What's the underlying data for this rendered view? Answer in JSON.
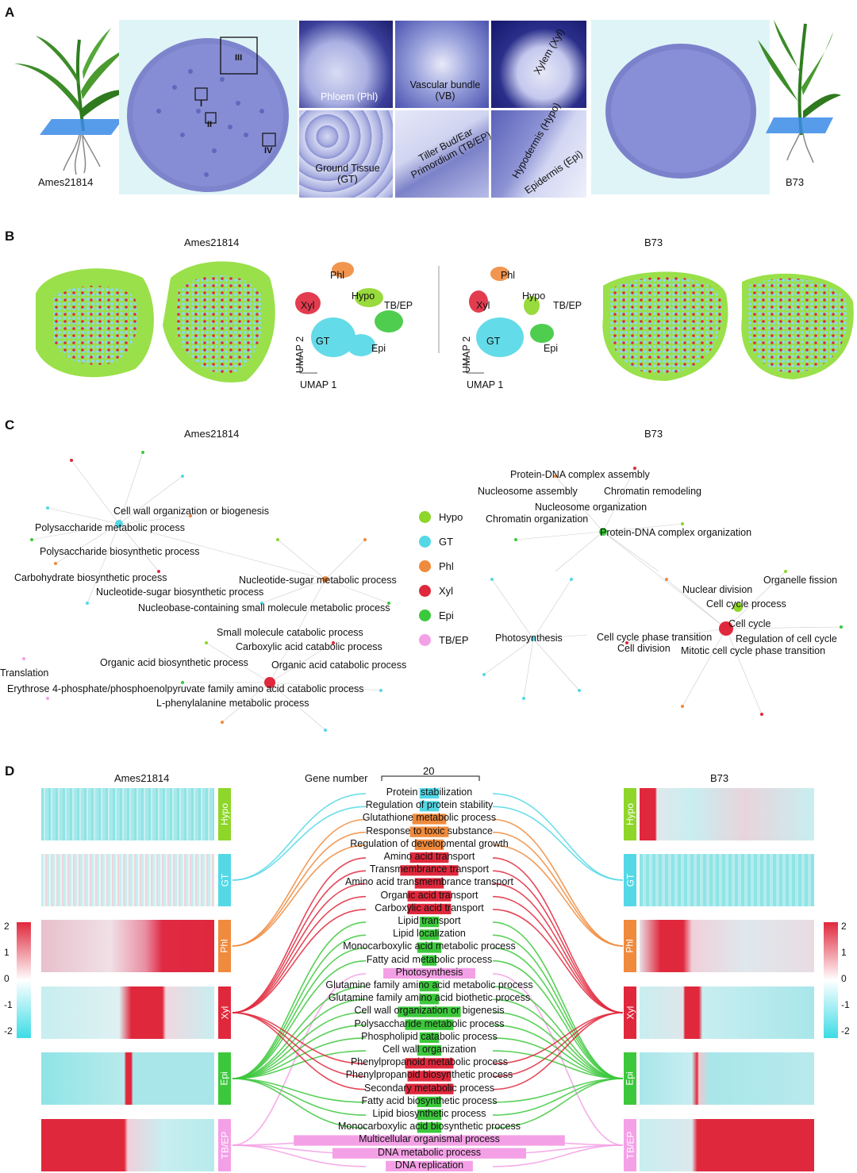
{
  "panels": {
    "A": {
      "letter": "A",
      "left_label": "Ames21814",
      "right_label": "B73",
      "roman": [
        "I",
        "II",
        "III",
        "IV"
      ],
      "micro_labels": {
        "phloem": "Phloem (Phl)",
        "vb": "Vascular bundle (VB)",
        "xylem": "Xylem (Xyl)",
        "gt": "Ground Tissue (GT)",
        "tb": "Tiller Bud/Ear Primordium (TB/EP)",
        "hypo": "Hypodermis (Hypo)",
        "epi": "Epidermis (Epi)"
      }
    },
    "B": {
      "letter": "B",
      "left_title": "Ames21814",
      "right_title": "B73",
      "umap_x": "UMAP 1",
      "umap_y": "UMAP 2",
      "clusters": [
        "Phl",
        "Xyl",
        "Hypo",
        "TB/EP",
        "GT",
        "Epi"
      ]
    },
    "C": {
      "letter": "C",
      "left_title": "Ames21814",
      "right_title": "B73",
      "legend": [
        {
          "name": "Hypo",
          "color": "#8ed629"
        },
        {
          "name": "GT",
          "color": "#54d8e6"
        },
        {
          "name": "Phl",
          "color": "#f08a3c"
        },
        {
          "name": "Xyl",
          "color": "#e0283c"
        },
        {
          "name": "Epi",
          "color": "#3cc83c"
        },
        {
          "name": "TB/EP",
          "color": "#f4a0e6"
        }
      ],
      "left_terms": [
        "Cell wall organization or biogenesis",
        "Polysaccharide metabolic process",
        "Polysaccharide biosynthetic process",
        "Carbohydrate biosynthetic process",
        "Nucleotide-sugar biosynthetic process",
        "Nucleotide-sugar metabolic process",
        "Nucleobase-containing small molecule metabolic process",
        "Small molecule catabolic process",
        "Carboxylic acid catabolic process",
        "Organic acid biosynthetic process",
        "Organic acid catabolic process",
        "Translation",
        "Erythrose 4-phosphate/phosphoenolpyruvate family amino acid catabolic process",
        "L-phenylalanine metabolic process"
      ],
      "right_terms": [
        "Protein-DNA complex assembly",
        "Nucleosome assembly",
        "Chromatin remodeling",
        "Nucleosome organization",
        "Chromatin organization",
        "Protein-DNA complex organization",
        "Photosynthesis",
        "Organelle fission",
        "Nuclear division",
        "Cell cycle process",
        "Cell cycle",
        "Cell cycle phase transition",
        "Regulation of cell cycle",
        "Cell division",
        "Mitotic cell cycle phase transition"
      ]
    },
    "D": {
      "letter": "D",
      "left_title": "Ames21814",
      "right_title": "B73",
      "gene_number_label": "Gene number",
      "scale_value": "20",
      "colorbar_ticks": [
        "2",
        "1",
        "0",
        "-1",
        "-2"
      ],
      "tissues": [
        "Hypo",
        "GT",
        "Phl",
        "Xyl",
        "Epi",
        "TB/EP"
      ],
      "terms": [
        {
          "name": "Protein stabilization",
          "color": "#54d8e6",
          "count": 4
        },
        {
          "name": "Regulation of protein stability",
          "color": "#54d8e6",
          "count": 4
        },
        {
          "name": "Glutathione metabolic process",
          "color": "#f08a3c",
          "count": 7
        },
        {
          "name": "Response to toxic substance",
          "color": "#f08a3c",
          "count": 8
        },
        {
          "name": "Regulation of developmental growth",
          "color": "#f08a3c",
          "count": 6
        },
        {
          "name": "Amino acid transport",
          "color": "#e0283c",
          "count": 8
        },
        {
          "name": "Transmembrance transport",
          "color": "#e0283c",
          "count": 12
        },
        {
          "name": "Amino acid transmembrance transport",
          "color": "#e0283c",
          "count": 6
        },
        {
          "name": "Organic acid transport",
          "color": "#e0283c",
          "count": 9
        },
        {
          "name": "Carboxylic acid transport",
          "color": "#e0283c",
          "count": 9
        },
        {
          "name": "Lipid transport",
          "color": "#3cc83c",
          "count": 4
        },
        {
          "name": "Lipid localization",
          "color": "#3cc83c",
          "count": 4
        },
        {
          "name": "Monocarboxylic acid metabolic process",
          "color": "#3cc83c",
          "count": 5
        },
        {
          "name": "Fatty acid metabolic process",
          "color": "#3cc83c",
          "count": 3
        },
        {
          "name": "Photosynthesis",
          "color": "#f4a0e6",
          "count": 19
        },
        {
          "name": "Glutamine family amino acid metabolic process",
          "color": "#3cc83c",
          "count": 4
        },
        {
          "name": "Glutamine family amino acid biothetic process",
          "color": "#3cc83c",
          "count": 4
        },
        {
          "name": "Cell wall organization or bigenesis",
          "color": "#3cc83c",
          "count": 13
        },
        {
          "name": "Polysaccharide metabolic process",
          "color": "#3cc83c",
          "count": 10
        },
        {
          "name": "Phospholipid catabolic process",
          "color": "#3cc83c",
          "count": 4
        },
        {
          "name": "Cell wall organization",
          "color": "#3cc83c",
          "count": 5
        },
        {
          "name": "Phenylpropanoid metabolic process",
          "color": "#e0283c",
          "count": 10
        },
        {
          "name": "Phenylpropanoid biosynthetic process",
          "color": "#e0283c",
          "count": 9
        },
        {
          "name": "Secondary metabolic process",
          "color": "#e0283c",
          "count": 10
        },
        {
          "name": "Fatty acid biosynthetic process",
          "color": "#3cc83c",
          "count": 5
        },
        {
          "name": "Lipid biosynthetic process",
          "color": "#3cc83c",
          "count": 5
        },
        {
          "name": "Monocarboxylic acid biosynthetic process",
          "color": "#3cc83c",
          "count": 5
        },
        {
          "name": "Multicellular organismal process",
          "color": "#f4a0e6",
          "count": 56
        },
        {
          "name": "DNA metabolic process",
          "color": "#f4a0e6",
          "count": 40
        },
        {
          "name": "DNA replication",
          "color": "#f4a0e6",
          "count": 18
        }
      ]
    }
  }
}
